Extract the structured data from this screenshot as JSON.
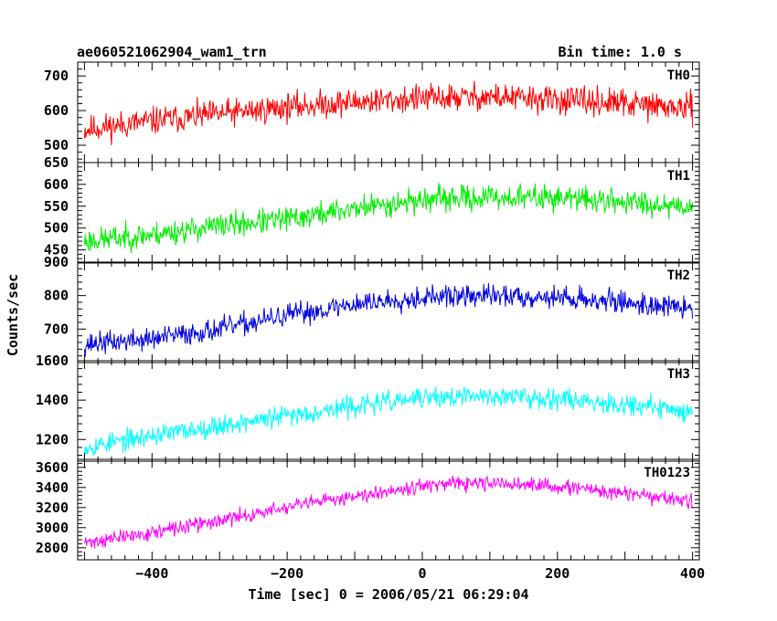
{
  "chart_data": {
    "type": "line",
    "title": "ae060521062904_wam1_trn",
    "subtitle": "Bin time: 1.0 s",
    "xlabel": "Time [sec] 0 = 2006/05/21 06:29:04",
    "ylabel": "Counts/sec",
    "xlim": [
      -510,
      410
    ],
    "x_ticks": [
      -400,
      -200,
      0,
      200,
      400
    ],
    "x_tick_labels": [
      "−400",
      "−200",
      "0",
      "200",
      "400"
    ],
    "x_range": [
      -500,
      400
    ],
    "grid": false,
    "legend": "none",
    "panels": [
      {
        "name": "TH0",
        "color": "#ff0000",
        "ylim": [
          450,
          740
        ],
        "y_ticks": [
          500,
          600,
          700
        ],
        "y_tick_labels": [
          "500",
          "600",
          "700"
        ],
        "trend_x": [
          -500,
          -400,
          -300,
          -200,
          -100,
          0,
          100,
          200,
          300,
          400
        ],
        "trend_y": [
          545,
          570,
          590,
          610,
          625,
          635,
          640,
          630,
          620,
          605
        ],
        "noise": 42,
        "seed": 11
      },
      {
        "name": "TH1",
        "color": "#00ee00",
        "ylim": [
          420,
          650
        ],
        "y_ticks": [
          450,
          500,
          550,
          600,
          650
        ],
        "y_tick_labels": [
          "450",
          "500",
          "550",
          "600",
          "650"
        ],
        "trend_x": [
          -500,
          -400,
          -300,
          -200,
          -100,
          0,
          100,
          200,
          300,
          400
        ],
        "trend_y": [
          470,
          485,
          505,
          520,
          545,
          565,
          570,
          570,
          560,
          550
        ],
        "noise": 30,
        "seed": 23
      },
      {
        "name": "TH2",
        "color": "#0000dd",
        "ylim": [
          600,
          900
        ],
        "y_ticks": [
          700,
          800,
          900
        ],
        "y_tick_labels": [
          "700",
          "800",
          "900"
        ],
        "trend_x": [
          -500,
          -400,
          -300,
          -200,
          -100,
          0,
          100,
          200,
          300,
          400
        ],
        "trend_y": [
          655,
          670,
          700,
          740,
          775,
          795,
          800,
          795,
          780,
          760
        ],
        "noise": 35,
        "seed": 37
      },
      {
        "name": "TH3",
        "color": "#00ffff",
        "ylim": [
          1090,
          1600
        ],
        "y_ticks": [
          1200,
          1400,
          1600
        ],
        "y_tick_labels": [
          "1200",
          "1400",
          "1600"
        ],
        "trend_x": [
          -500,
          -400,
          -300,
          -200,
          -100,
          0,
          100,
          200,
          300,
          400
        ],
        "trend_y": [
          1160,
          1220,
          1270,
          1320,
          1370,
          1410,
          1420,
          1410,
          1380,
          1340
        ],
        "noise": 55,
        "seed": 53
      },
      {
        "name": "TH0123",
        "color": "#ff00ff",
        "ylim": [
          2680,
          3680
        ],
        "y_ticks": [
          2800,
          3000,
          3200,
          3400,
          3600
        ],
        "y_tick_labels": [
          "2800",
          "3000",
          "3200",
          "3400",
          "3600"
        ],
        "trend_x": [
          -500,
          -400,
          -300,
          -200,
          -100,
          0,
          100,
          200,
          300,
          400
        ],
        "trend_y": [
          2850,
          2950,
          3070,
          3200,
          3320,
          3420,
          3440,
          3410,
          3340,
          3260
        ],
        "noise": 75,
        "seed": 71
      }
    ]
  }
}
